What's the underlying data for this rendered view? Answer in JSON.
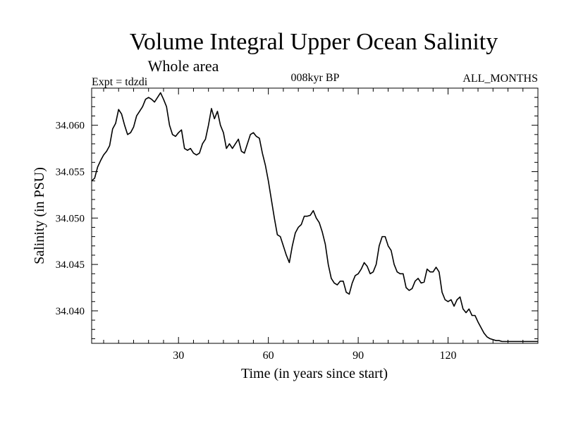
{
  "chart_data": {
    "type": "line",
    "title": "Volume Integral Upper Ocean Salinity",
    "subtitle": "Whole area",
    "left_label": "Expt = tdzdi",
    "center_label": "008kyr BP",
    "right_label": "ALL_MONTHS",
    "xlabel": "Time (in years since start)",
    "ylabel": "Salinity (in PSU)",
    "xlim": [
      1,
      150
    ],
    "ylim": [
      34.0365,
      34.064
    ],
    "x_ticks": [
      30,
      60,
      90,
      120
    ],
    "y_ticks": [
      34.04,
      34.045,
      34.05,
      34.055,
      34.06
    ],
    "x_tick_labels": [
      "30",
      "60",
      "90",
      "120"
    ],
    "y_tick_labels": [
      "34.040",
      "34.045",
      "34.050",
      "34.055",
      "34.060"
    ],
    "grid": false,
    "series": [
      {
        "color": "#000000",
        "x": [
          1,
          2,
          3,
          4,
          5,
          6,
          7,
          8,
          9,
          10,
          11,
          12,
          13,
          14,
          15,
          16,
          17,
          18,
          19,
          20,
          21,
          22,
          23,
          24,
          25,
          26,
          27,
          28,
          29,
          30,
          31,
          32,
          33,
          34,
          35,
          36,
          37,
          38,
          39,
          40,
          41,
          42,
          43,
          44,
          45,
          46,
          47,
          48,
          49,
          50,
          51,
          52,
          53,
          54,
          55,
          56,
          57,
          58,
          59,
          60,
          61,
          62,
          63,
          64,
          65,
          66,
          67,
          68,
          69,
          70,
          71,
          72,
          73,
          74,
          75,
          76,
          77,
          78,
          79,
          80,
          81,
          82,
          83,
          84,
          85,
          86,
          87,
          88,
          89,
          90,
          91,
          92,
          93,
          94,
          95,
          96,
          97,
          98,
          99,
          100,
          101,
          102,
          103,
          104,
          105,
          106,
          107,
          108,
          109,
          110,
          111,
          112,
          113,
          114,
          115,
          116,
          117,
          118,
          119,
          120,
          121,
          122,
          123,
          124,
          125,
          126,
          127,
          128,
          129,
          130,
          131,
          132,
          133,
          134,
          135,
          136,
          137,
          138,
          139,
          140,
          141,
          142,
          143,
          144,
          145,
          146,
          147,
          148,
          149,
          150
        ],
        "y": [
          34.054,
          34.0543,
          34.0555,
          34.0562,
          34.0568,
          34.0572,
          34.0578,
          34.0596,
          34.0602,
          34.0617,
          34.0612,
          34.06,
          34.059,
          34.0592,
          34.0598,
          34.061,
          34.0615,
          34.062,
          34.0628,
          34.063,
          34.0628,
          34.0625,
          34.063,
          34.0635,
          34.0628,
          34.062,
          34.06,
          34.059,
          34.0588,
          34.0592,
          34.0595,
          34.0575,
          34.0573,
          34.0575,
          34.057,
          34.0568,
          34.057,
          34.058,
          34.0585,
          34.06,
          34.0618,
          34.0607,
          34.0615,
          34.06,
          34.0592,
          34.0575,
          34.058,
          34.0575,
          34.058,
          34.0585,
          34.0572,
          34.057,
          34.058,
          34.059,
          34.0592,
          34.0588,
          34.0586,
          34.057,
          34.0557,
          34.054,
          34.052,
          34.05,
          34.0482,
          34.048,
          34.047,
          34.046,
          34.0452,
          34.047,
          34.0484,
          34.049,
          34.0493,
          34.0502,
          34.0502,
          34.0503,
          34.0508,
          34.05,
          34.0495,
          34.0485,
          34.0472,
          34.045,
          34.0435,
          34.043,
          34.0428,
          34.0432,
          34.0432,
          34.042,
          34.0418,
          34.043,
          34.0438,
          34.044,
          34.0445,
          34.0452,
          34.0448,
          34.044,
          34.0442,
          34.045,
          34.047,
          34.048,
          34.048,
          34.047,
          34.0465,
          34.045,
          34.0442,
          34.044,
          34.044,
          34.0425,
          34.0422,
          34.0424,
          34.0432,
          34.0435,
          34.043,
          34.0431,
          34.0445,
          34.0442,
          34.0442,
          34.0447,
          34.0442,
          34.042,
          34.0412,
          34.041,
          34.0412,
          34.0405,
          34.0412,
          34.0415,
          34.0402,
          34.0398,
          34.0402,
          34.0395,
          34.0395,
          34.0388,
          34.0382,
          34.0376,
          34.0372,
          34.037,
          34.0369,
          34.0368,
          34.0368,
          34.0367,
          34.0367,
          34.0367,
          34.0367,
          34.0367,
          34.0367,
          34.0367,
          34.0367,
          34.0367,
          34.0367,
          34.0367,
          34.0367,
          34.0367
        ]
      }
    ]
  }
}
